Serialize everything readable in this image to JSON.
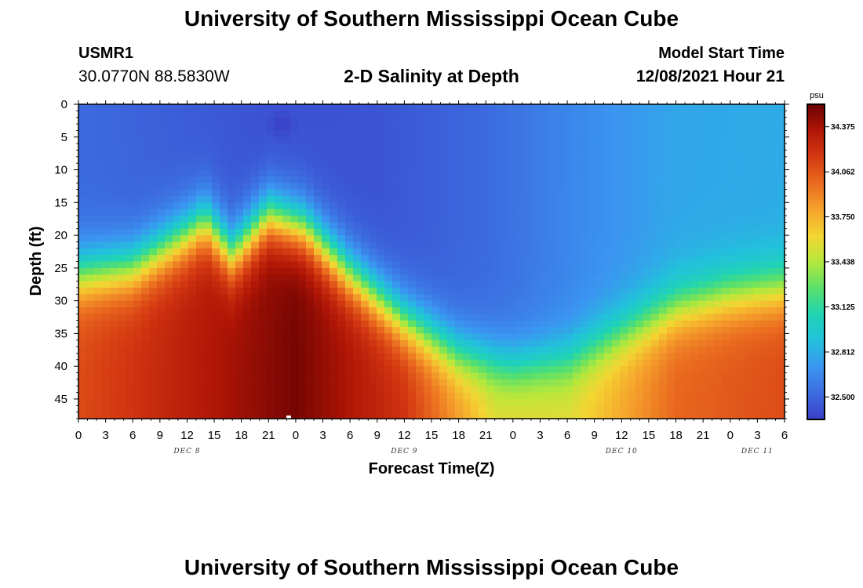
{
  "header": {
    "title": "University of Southern Mississippi Ocean Cube",
    "station_id": "USMR1",
    "station_location": "30.0770N  88.5830W",
    "subtitle": "2-D Salinity at Depth",
    "model_start_label": "Model Start Time",
    "model_start_value": "12/08/2021 Hour 21"
  },
  "footer": {
    "title": "University of Southern Mississippi Ocean Cube"
  },
  "chart_data": {
    "type": "heatmap",
    "title": "2-D Salinity at Depth",
    "xlabel": "Forecast Time(Z)",
    "ylabel": "Depth (ft)",
    "colorbar_unit": "psu",
    "x_range_hours": [
      0,
      78
    ],
    "y_range_ft": [
      0,
      48
    ],
    "y_inverted": true,
    "x_tick_labels": [
      "0",
      "3",
      "6",
      "9",
      "12",
      "15",
      "18",
      "21",
      "0",
      "3",
      "6",
      "9",
      "12",
      "15",
      "18",
      "21",
      "0",
      "3",
      "6",
      "9",
      "12",
      "15",
      "18",
      "21",
      "0",
      "3",
      "6"
    ],
    "day_labels": [
      {
        "label": "DEC 8",
        "hour": 12
      },
      {
        "label": "DEC 9",
        "hour": 36
      },
      {
        "label": "DEC 10",
        "hour": 60
      },
      {
        "label": "DEC 11",
        "hour": 75
      }
    ],
    "y_ticks": [
      0,
      5,
      10,
      15,
      20,
      25,
      30,
      35,
      40,
      45
    ],
    "colorbar_ticks": [
      32.5,
      32.812,
      33.125,
      33.438,
      33.75,
      34.062,
      34.375
    ],
    "colorbar_tick_labels": [
      "32.500",
      "32.812",
      "33.125",
      "33.438",
      "33.750",
      "34.062",
      "34.375"
    ],
    "colorbar_range": [
      32.344,
      34.531
    ],
    "colormap": [
      "#3a3fc8",
      "#3c6cdf",
      "#3b95f1",
      "#22c1dc",
      "#20d4b4",
      "#5ae06a",
      "#b4e83c",
      "#f4d532",
      "#f5a22c",
      "#ea6a1f",
      "#d43a12",
      "#b01606",
      "#6a0202"
    ],
    "surface_salinity_at_depth_0": [
      {
        "hour": 0,
        "salinity": 32.52
      },
      {
        "hour": 9,
        "salinity": 32.48
      },
      {
        "hour": 21,
        "salinity": 32.42
      },
      {
        "hour": 33,
        "salinity": 32.43
      },
      {
        "hour": 45,
        "salinity": 32.52
      },
      {
        "hour": 57,
        "salinity": 32.68
      },
      {
        "hour": 66,
        "salinity": 32.78
      },
      {
        "hour": 78,
        "salinity": 32.8
      }
    ],
    "low_salinity_patch": {
      "hour": 22.5,
      "depth_ft": 3,
      "salinity": 32.34
    },
    "halocline_depth_ft_by_hour": [
      {
        "hour": 0,
        "depth": 26
      },
      {
        "hour": 6,
        "depth": 25
      },
      {
        "hour": 12,
        "depth": 20
      },
      {
        "hour": 14,
        "depth": 18
      },
      {
        "hour": 17,
        "depth": 23
      },
      {
        "hour": 21,
        "depth": 17
      },
      {
        "hour": 25,
        "depth": 19
      },
      {
        "hour": 30,
        "depth": 26
      },
      {
        "hour": 36,
        "depth": 33
      },
      {
        "hour": 42,
        "depth": 38
      },
      {
        "hour": 48,
        "depth": 40
      },
      {
        "hour": 54,
        "depth": 39
      },
      {
        "hour": 60,
        "depth": 35
      },
      {
        "hour": 66,
        "depth": 31
      },
      {
        "hour": 72,
        "depth": 29
      },
      {
        "hour": 78,
        "depth": 28
      }
    ],
    "bottom_salinity_at_depth_48": [
      {
        "hour": 0,
        "salinity": 34.1
      },
      {
        "hour": 12,
        "salinity": 34.3
      },
      {
        "hour": 24,
        "salinity": 34.5
      },
      {
        "hour": 36,
        "salinity": 34.2
      },
      {
        "hour": 46,
        "salinity": 33.55
      },
      {
        "hour": 54,
        "salinity": 33.55
      },
      {
        "hour": 66,
        "salinity": 34.0
      },
      {
        "hour": 78,
        "salinity": 34.1
      }
    ]
  }
}
